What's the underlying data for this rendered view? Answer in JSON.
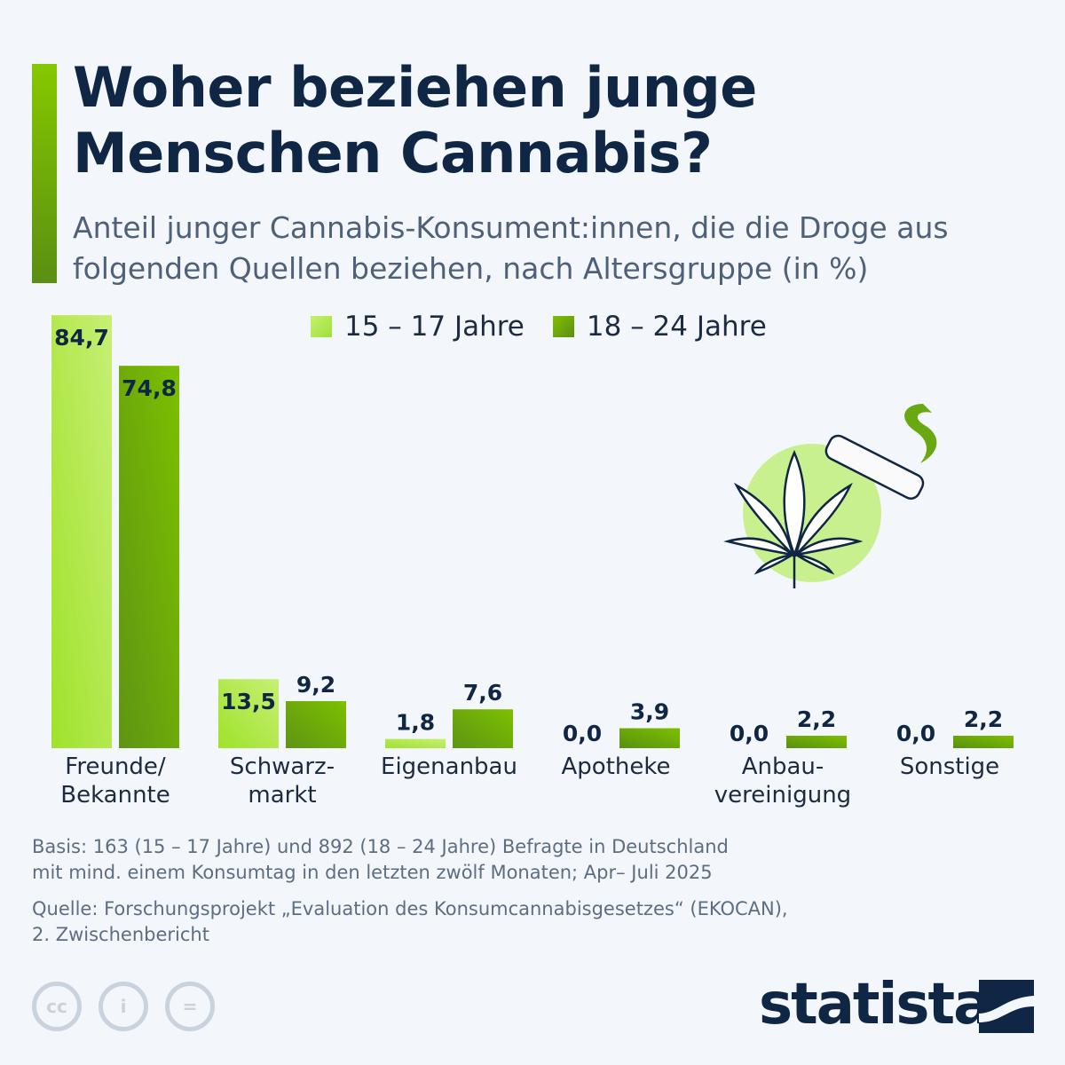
{
  "title": "Woher beziehen junge Menschen Cannabis?",
  "title_lines": [
    "Woher beziehen junge",
    "Menschen Cannabis?"
  ],
  "subtitle_lines": [
    "Anteil junger Cannabis-Konsument:innen, die die Droge aus",
    "folgenden Quellen beziehen, nach Altersgruppe (in %)"
  ],
  "chart_data": {
    "type": "bar",
    "title": "Woher beziehen junge Menschen Cannabis?",
    "categories": [
      "Freunde/\nBekannte",
      "Schwarz-\nmarkt",
      "Eigenanbau",
      "Apotheke",
      "Anbau-\nvereinigung",
      "Sonstige"
    ],
    "series": [
      {
        "name": "15 – 17 Jahre",
        "values": [
          84.7,
          13.5,
          1.8,
          0.0,
          0.0,
          0.0
        ],
        "color": "#b8ec5c"
      },
      {
        "name": "18 – 24 Jahre",
        "values": [
          74.8,
          9.2,
          7.6,
          3.9,
          2.2,
          2.2
        ],
        "color": "#6fae0c"
      }
    ],
    "value_labels": [
      [
        "84,7",
        "13,5",
        "1,8",
        "0,0",
        "0,0",
        "0,0"
      ],
      [
        "74,8",
        "9,2",
        "7,6",
        "3,9",
        "2,2",
        "2,2"
      ]
    ],
    "ylim": [
      0,
      85
    ],
    "grid": false,
    "legend": "top"
  },
  "footer": {
    "basis": [
      "Basis: 163 (15 – 17 Jahre) und 892 (18 – 24 Jahre) Befragte in Deutschland",
      "mit mind. einem Konsumtag in den letzten zwölf Monaten; Apr– Juli 2025"
    ],
    "source": [
      "Quelle: Forschungsprojekt „Evaluation des Konsumcannabisgesetzes“ (EKOCAN),",
      "2. Zwischenbericht"
    ],
    "brand": "statista",
    "license_icons": [
      "cc-icon",
      "attribution-icon",
      "no-derivatives-icon"
    ]
  },
  "colors": {
    "accent": "#7cc000",
    "title": "#0f2744",
    "light": "#b8ec5c",
    "dark": "#6fae0c"
  }
}
